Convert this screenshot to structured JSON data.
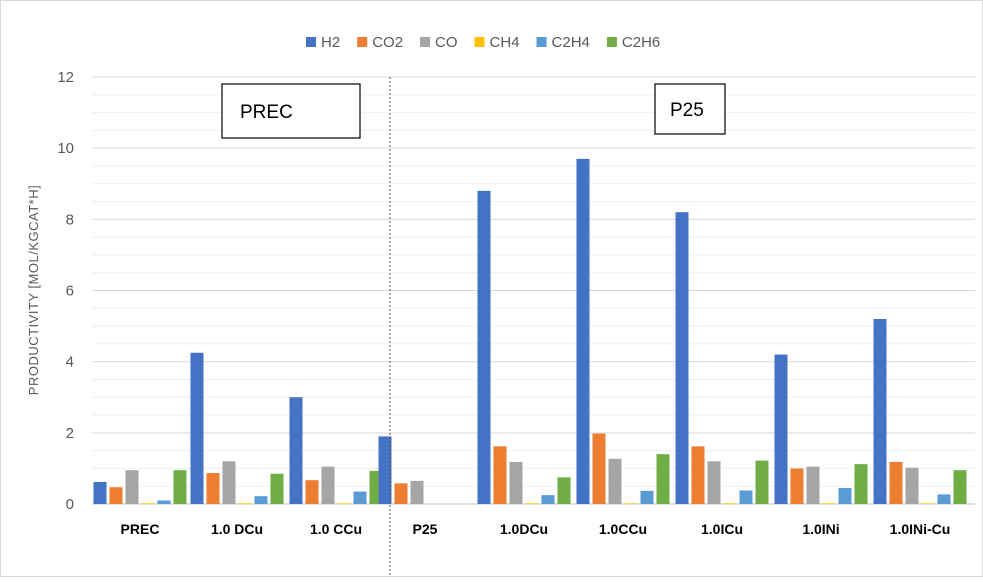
{
  "chart_data": {
    "type": "bar",
    "ylabel": "PRODUCTIVITY [MOL/KGCAT*H]",
    "ylim": [
      0,
      12
    ],
    "yticks": [
      0,
      2,
      4,
      6,
      8,
      10,
      12
    ],
    "grid": true,
    "legend_position": "top",
    "categories": [
      "PREC",
      "1.0 DCu",
      "1.0 CCu",
      "P25",
      "1.0DCu",
      "1.0CCu",
      "1.0ICu",
      "1.0INi",
      "1.0INi-Cu"
    ],
    "series": [
      {
        "name": "H2",
        "color": "#4472C4",
        "values": [
          0.62,
          4.25,
          3.0,
          1.9,
          8.8,
          9.7,
          8.2,
          4.2,
          5.2
        ]
      },
      {
        "name": "CO2",
        "color": "#ED7D31",
        "values": [
          0.47,
          0.87,
          0.67,
          0.58,
          1.62,
          1.98,
          1.62,
          1.0,
          1.18
        ]
      },
      {
        "name": "CO",
        "color": "#A5A5A5",
        "values": [
          0.95,
          1.2,
          1.05,
          0.65,
          1.18,
          1.27,
          1.2,
          1.05,
          1.02
        ]
      },
      {
        "name": "CH4",
        "color": "#FFC000",
        "values": [
          0.02,
          0.02,
          0.02,
          0,
          0.02,
          0.02,
          0.02,
          0.02,
          0.02
        ]
      },
      {
        "name": "C2H4",
        "color": "#5B9BD5",
        "values": [
          0.1,
          0.22,
          0.35,
          0,
          0.25,
          0.37,
          0.38,
          0.45,
          0.27
        ]
      },
      {
        "name": "C2H6",
        "color": "#70AD47",
        "values": [
          0.95,
          0.85,
          0.93,
          0,
          0.75,
          1.4,
          1.22,
          1.12,
          0.95
        ]
      }
    ],
    "annotations": [
      {
        "text": "PREC"
      },
      {
        "text": "P25"
      }
    ]
  }
}
